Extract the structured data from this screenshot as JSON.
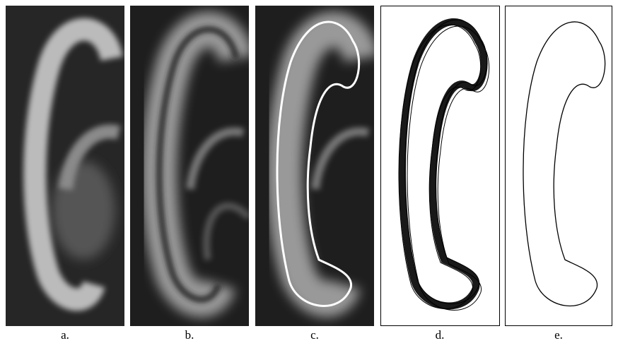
{
  "panels": [
    {
      "label": "a."
    },
    {
      "label": "b."
    },
    {
      "label": "c."
    },
    {
      "label": "d."
    },
    {
      "label": "e."
    }
  ]
}
